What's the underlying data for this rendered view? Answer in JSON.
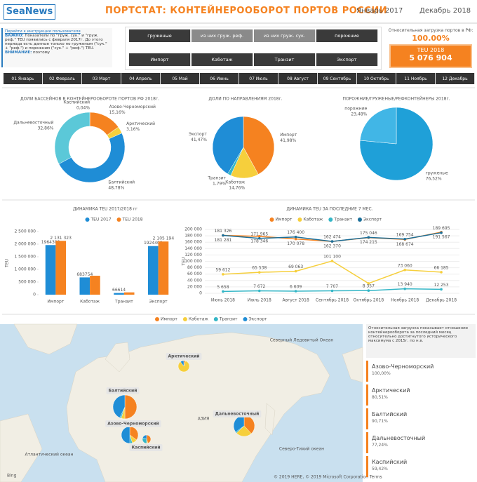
{
  "header": {
    "logo": "SeaNews",
    "title": "ПОРТСТАТ: КОНТЕЙНЕРООБОРОТ ПОРТОВ РОССИИ",
    "period_start": "Январь 2017",
    "period_end": "Декабрь 2018"
  },
  "info": {
    "link": "Перейти к инструкции пользователя",
    "important": "ВАЖНО:",
    "text": "Показатели по \"груж. сук.\" и \"груж. реф.\" TEU появились с февраля 2017г. До этого периода есть данные только по груженым (\"сук.\" + \"реф.\") и порожним (\"сук.\" + \"реф.\") TEU.",
    "attention": "ВНИМАНИЕ:",
    "text_end": "поэтому"
  },
  "filters": {
    "cargo": [
      "груженые",
      "из них груж. реф.",
      "из них груж. сук.",
      "порожние"
    ],
    "directions": [
      "Импорт",
      "Каботаж",
      "Транзит",
      "Экспорт"
    ]
  },
  "kpi": {
    "load_label": "Относительная загрузка портов в РФ:",
    "load_value": "100.00%",
    "teu_label": "TEU 2018",
    "teu_value": "5 076 904"
  },
  "months": [
    "01 Январь",
    "02 Февраль",
    "03 Март",
    "04 Апрель",
    "05 Май",
    "06 Июнь",
    "07 Июль",
    "08 Август",
    "09 Сентябрь",
    "10 Октябрь",
    "11 Ноябрь",
    "12 Декабрь"
  ],
  "chart_data": [
    {
      "type": "pie",
      "donut": true,
      "title": "ДОЛИ БАССЕЙНОВ В КОНТЕЙНЕРООБОРОТЕ ПОРТОВ РФ 2018г.",
      "categories": [
        "Каспийский",
        "Азово-Черноморский",
        "Арктический",
        "Балтийский",
        "Дальневосточный"
      ],
      "values": [
        0.04,
        15.16,
        3.16,
        48.78,
        32.86
      ],
      "value_labels": [
        "0,04%",
        "15,16%",
        "3,16%",
        "48,78%",
        "32,86%"
      ],
      "colors": [
        "#1c4f7a",
        "#f58220",
        "#f6cf3c",
        "#1f8dd6",
        "#5bc8d8"
      ]
    },
    {
      "type": "pie",
      "donut": false,
      "title": "ДОЛИ ПО НАПРАВЛЕНИЯМ 2018г.",
      "categories": [
        "Импорт",
        "Каботаж",
        "Транзит",
        "Экспорт"
      ],
      "values": [
        41.98,
        14.76,
        1.79,
        41.47
      ],
      "value_labels": [
        "41,98%",
        "14,76%",
        "1,79%",
        "41,47%"
      ],
      "colors": [
        "#f58220",
        "#f6cf3c",
        "#34b6c6",
        "#1f8dd6"
      ]
    },
    {
      "type": "pie",
      "donut": false,
      "title": "ПОРОЖНИЕ/ГРУЖЕНЫЕ/РЕФКОНТЕЙНЕРЫ 2018г.",
      "categories": [
        "груженые",
        "порожние"
      ],
      "values": [
        76.52,
        23.48
      ],
      "value_labels": [
        "76,52%",
        "23,48%"
      ],
      "colors": [
        "#1fa0d8",
        "#41b6e6"
      ]
    },
    {
      "type": "bar",
      "title": "ДИНАМИКА TEU 2017/2018 гг",
      "y_label": "TEU",
      "categories": [
        "Импорт",
        "Каботаж",
        "Транзит",
        "Экспорт"
      ],
      "series": [
        {
          "name": "TEU 2017",
          "color": "#1f8dd6",
          "values": [
            1964309,
            683754,
            66614,
            1924409
          ]
        },
        {
          "name": "TEU 2018",
          "color": "#f58220",
          "values": [
            2131323,
            749000,
            91000,
            2105194
          ],
          "value_labels": [
            "2 131 323",
            null,
            null,
            "2 105 194"
          ]
        }
      ],
      "ylim": [
        0,
        2500000
      ],
      "yticks": [
        {
          "value": 0,
          "label": "0"
        },
        {
          "value": 500000,
          "label": "500 000"
        },
        {
          "value": 1000000,
          "label": "1 000 000"
        },
        {
          "value": 1500000,
          "label": "1 500 000"
        },
        {
          "value": 2000000,
          "label": "2 000 000"
        },
        {
          "value": 2500000,
          "label": "2 500 000"
        }
      ],
      "grid": false
    },
    {
      "type": "line",
      "title": "ДИНАМИКА TEU ЗА ПОСЛЕДНИЕ 7 МЕС.",
      "y_label": "TEU",
      "categories": [
        "Июнь 2018",
        "Июль 2018",
        "Август 2018",
        "Сентябрь 2018",
        "Октябрь 2018",
        "Ноябрь 2018",
        "Декабрь 2018"
      ],
      "series": [
        {
          "name": "Импорт",
          "color": "#f58220",
          "values": [
            181281,
            178346,
            170078,
            162370,
            174215,
            168674,
            191567
          ],
          "value_labels": [
            "181 281",
            "178 346",
            "170 078",
            "162 370",
            "174 215",
            "168 674",
            "191 567"
          ]
        },
        {
          "name": "Каботаж",
          "color": "#f6cf3c",
          "values": [
            59612,
            65538,
            69063,
            101100,
            31000,
            73060,
            66185
          ],
          "value_labels": [
            "59 612",
            "65 538",
            "69 063",
            "101 100",
            null,
            "73 060",
            "66 185"
          ]
        },
        {
          "name": "Транзит",
          "color": "#34b6c6",
          "values": [
            5658,
            7672,
            6609,
            7707,
            8357,
            13940,
            12253
          ],
          "value_labels": [
            "5 658",
            "7 672",
            "6 609",
            "7 707",
            "8 357",
            "13 940",
            "12 253"
          ]
        },
        {
          "name": "Экспорт",
          "color": "#1b6f9a",
          "values": [
            181326,
            171965,
            176400,
            162474,
            175046,
            169754,
            189695
          ],
          "value_labels": [
            "181 326",
            "171 965",
            "176 400",
            "162 474",
            "175 046",
            "169 754",
            "189 695"
          ]
        }
      ],
      "ylim": [
        0,
        200000
      ],
      "yticks": [
        {
          "value": 0,
          "label": "0"
        },
        {
          "value": 20000,
          "label": "20 000"
        },
        {
          "value": 40000,
          "label": "40 000"
        },
        {
          "value": 60000,
          "label": "60 000"
        },
        {
          "value": 80000,
          "label": "80 000"
        },
        {
          "value": 100000,
          "label": "100 000"
        },
        {
          "value": 120000,
          "label": "120 000"
        },
        {
          "value": 140000,
          "label": "140 000"
        },
        {
          "value": 160000,
          "label": "160 000"
        },
        {
          "value": 180000,
          "label": "180 000"
        },
        {
          "value": 200000,
          "label": "200 000"
        }
      ],
      "grid": true
    },
    {
      "type": "map",
      "categories": [
        "Арктический",
        "Балтийский",
        "Азово-Черноморский",
        "Каспийский",
        "Дальневосточный"
      ],
      "series": [
        {
          "name": "Импорт",
          "color": "#f58220",
          "values": [
            5,
            50,
            35,
            45,
            38
          ]
        },
        {
          "name": "Каботаж",
          "color": "#f6cf3c",
          "values": [
            85,
            5,
            10,
            5,
            25
          ]
        },
        {
          "name": "Транзит",
          "color": "#34b6c6",
          "values": [
            0,
            2,
            5,
            30,
            2
          ]
        },
        {
          "name": "Экспорт",
          "color": "#1f8dd6",
          "values": [
            10,
            43,
            50,
            20,
            35
          ]
        }
      ]
    }
  ],
  "map": {
    "asia": "АЗИЯ",
    "arctic_ocean": "Северный Ледовитый Океан",
    "atlantic": "Атлантический океан",
    "pacific": "Северо-Тихий океан",
    "provider": "Bing",
    "copyright": "© 2019 HERE, © 2019 Microsoft Corporation",
    "terms": "Terms"
  },
  "load_panel": {
    "note": "Относительная загрузка показывает отношение контейнерооборота за последний месяц относительно достигнутого исторического максимума с 2015г. по н.в.",
    "items": [
      {
        "name": "Азово-Черноморский",
        "value": "100,00%"
      },
      {
        "name": "Арктический",
        "value": "80,51%"
      },
      {
        "name": "Балтийский",
        "value": "90,71%"
      },
      {
        "name": "Дальневосточный",
        "value": "77,24%"
      },
      {
        "name": "Каспийский",
        "value": "59,42%"
      }
    ]
  }
}
